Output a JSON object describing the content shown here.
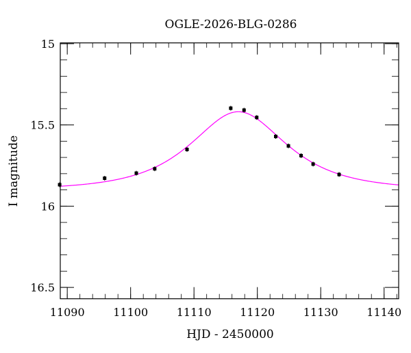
{
  "chart_data": {
    "type": "scatter",
    "title": "OGLE-2026-BLG-0286",
    "xlabel": "HJD - 2450000",
    "ylabel": "I magnitude",
    "xlim": [
      11088.9,
      11142.3
    ],
    "ylim": [
      16.57,
      14.995
    ],
    "y_inverted": true,
    "xticks": [
      11090,
      11100,
      11110,
      11120,
      11130,
      11140
    ],
    "xtick_labels": [
      "11090",
      "11100",
      "11110",
      "11120",
      "11130",
      "11140"
    ],
    "x_minor_step": 2,
    "yticks": [
      15,
      15.5,
      16,
      16.5
    ],
    "ytick_labels": [
      "15",
      "15.5",
      "16",
      "16.5"
    ],
    "y_minor_step": 0.1,
    "grid": false,
    "series": [
      {
        "name": "data",
        "kind": "points",
        "color": "#000000",
        "x": [
          11088.8,
          11095.9,
          11100.9,
          11103.8,
          11108.9,
          11115.8,
          11117.9,
          11119.9,
          11122.9,
          11124.9,
          11126.9,
          11128.8,
          11132.9
        ],
        "y": [
          15.868,
          15.828,
          15.797,
          15.77,
          15.651,
          15.397,
          15.409,
          15.454,
          15.571,
          15.629,
          15.689,
          15.741,
          15.805
        ]
      },
      {
        "name": "model",
        "kind": "line",
        "color": "#ff00ff",
        "model": {
          "t0": 11117.0,
          "tE": 10.4,
          "u0": 0.78,
          "mbase": 15.9
        }
      }
    ]
  }
}
